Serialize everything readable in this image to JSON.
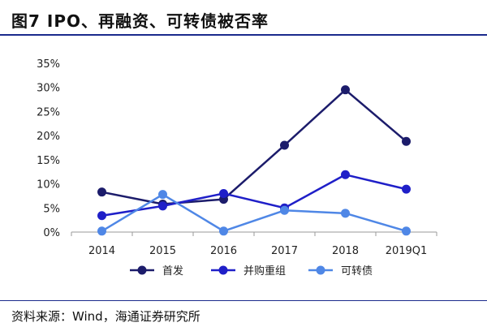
{
  "figure": {
    "title": "图7 IPO、再融资、可转债被否率",
    "source": "资料来源：Wind，海通证券研究所"
  },
  "chart_data": {
    "type": "line",
    "categories": [
      "2014",
      "2015",
      "2016",
      "2017",
      "2018",
      "2019Q1"
    ],
    "ylim": [
      0,
      35
    ],
    "yticks": [
      0,
      5,
      10,
      15,
      20,
      25,
      30,
      35
    ],
    "ytick_suffix": "%",
    "grid": false,
    "legend_position": "bottom",
    "series": [
      {
        "name": "首发",
        "color": "#1c1c6b",
        "values": [
          8.3,
          5.8,
          6.8,
          18.0,
          29.5,
          18.8
        ]
      },
      {
        "name": "并购重组",
        "color": "#1f1fc8",
        "values": [
          3.4,
          5.4,
          8.0,
          5.0,
          11.9,
          8.9
        ]
      },
      {
        "name": "可转债",
        "color": "#4f87e6",
        "values": [
          0.2,
          7.8,
          0.2,
          4.5,
          3.9,
          0.2
        ]
      }
    ]
  }
}
